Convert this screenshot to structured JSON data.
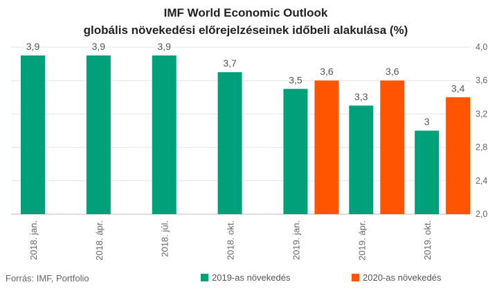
{
  "chart_data": {
    "type": "bar",
    "title_line1": "IMF World Economic Outlook",
    "title_line2": "globális növekedési előrejelzéseinek időbeli alakulása (%)",
    "categories": [
      "2018. jan.",
      "2018. ápr.",
      "2018. júl.",
      "2018. okt.",
      "2019. jan.",
      "2019. ápr.",
      "2019. okt."
    ],
    "series": [
      {
        "name": "2019-as növekedés",
        "color": "#00A07A",
        "values": [
          3.9,
          3.9,
          3.9,
          3.7,
          3.5,
          3.3,
          3.0
        ],
        "labels": [
          "3,9",
          "3,9",
          "3,9",
          "3,7",
          "3,5",
          "3,3",
          "3"
        ]
      },
      {
        "name": "2020-as növekedés",
        "color": "#FF5500",
        "values": [
          null,
          null,
          null,
          null,
          3.6,
          3.6,
          3.4
        ],
        "labels": [
          "",
          "",
          "",
          "",
          "3,6",
          "3,6",
          "3,4"
        ]
      }
    ],
    "ylim": [
      2.0,
      4.0
    ],
    "yticks": [
      2.0,
      2.4,
      2.8,
      3.2,
      3.6,
      4.0
    ],
    "ytick_labels": [
      "2,0",
      "2,4",
      "2,8",
      "3,2",
      "3,6",
      "4,0"
    ],
    "yaxis_side": "right",
    "grid": true,
    "legend_position": "bottom",
    "xlabel": "",
    "ylabel": ""
  },
  "source": "Forrás: IMF, Portfolio"
}
